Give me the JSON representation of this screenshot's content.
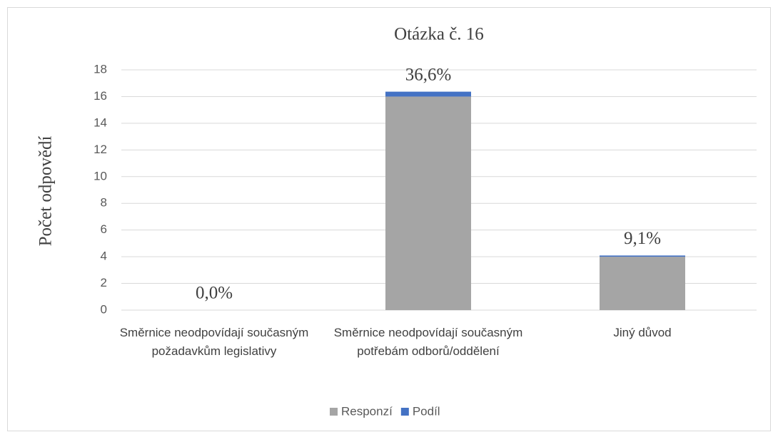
{
  "chart_data": {
    "type": "bar",
    "stacked": true,
    "title": "Otázka č. 16",
    "ylabel": "Počet odpovědí",
    "categories": [
      "Směrnice neodpovídají současným požadavkům legislativy",
      "Směrnice neodpovídají současným potřebám odborů/oddělení",
      "Jiný důvod"
    ],
    "series": [
      {
        "name": "Responzí",
        "color": "#a5a5a5",
        "values": [
          0,
          16,
          4
        ]
      },
      {
        "name": "Podíl",
        "color": "#4472c4",
        "values": [
          0,
          0.366,
          0.091
        ],
        "value_labels": [
          "0,0%",
          "36,6%",
          "9,1%"
        ]
      }
    ],
    "ylim": [
      0,
      18
    ],
    "yticks": [
      0,
      2,
      4,
      6,
      8,
      10,
      12,
      14,
      16,
      18
    ],
    "grid": true,
    "legend": "bottom"
  }
}
